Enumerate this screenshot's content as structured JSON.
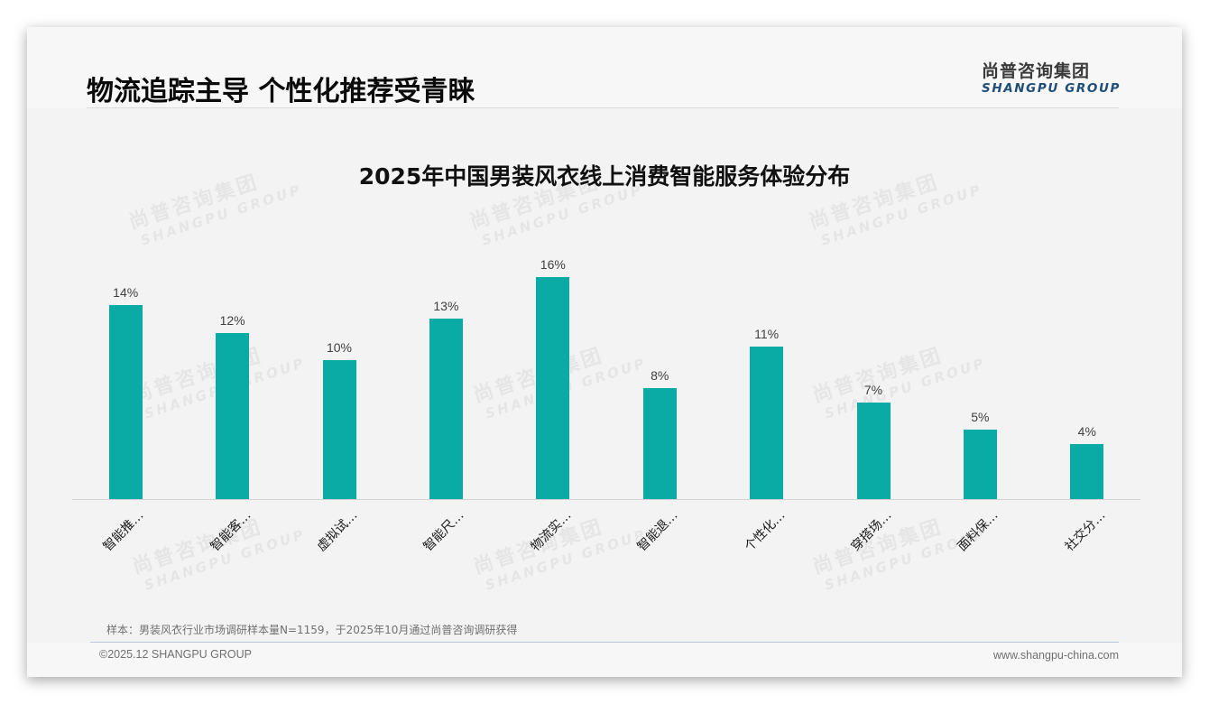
{
  "header": {
    "title": "物流追踪主导 个性化推荐受青睐",
    "logo_cn": "尚普咨询集团",
    "logo_en": "SHANGPU GROUP"
  },
  "watermark": {
    "cn": "尚普咨询集团",
    "en": "SHANGPU GROUP"
  },
  "colors": {
    "bar": "#0aaba4",
    "logo_en": "#1f4e79"
  },
  "chart_data": {
    "type": "bar",
    "title": "2025年中国男装风衣线上消费智能服务体验分布",
    "categories": [
      "智能推…",
      "智能客…",
      "虚拟试…",
      "智能尺…",
      "物流实…",
      "智能退…",
      "个性化…",
      "穿搭场…",
      "面料保…",
      "社交分…"
    ],
    "values": [
      14,
      12,
      10,
      13,
      16,
      8,
      11,
      7,
      5,
      4
    ],
    "value_labels": [
      "14%",
      "12%",
      "10%",
      "13%",
      "16%",
      "8%",
      "11%",
      "7%",
      "5%",
      "4%"
    ],
    "unit": "%",
    "xlabel": "",
    "ylabel": "",
    "ylim": [
      0,
      19
    ],
    "grid": false,
    "legend": false
  },
  "footer": {
    "note": "样本：男装风衣行业市场调研样本量N=1159，于2025年10月通过尚普咨询调研获得",
    "copyright": "©2025.12 SHANGPU GROUP",
    "website": "www.shangpu-china.com"
  }
}
